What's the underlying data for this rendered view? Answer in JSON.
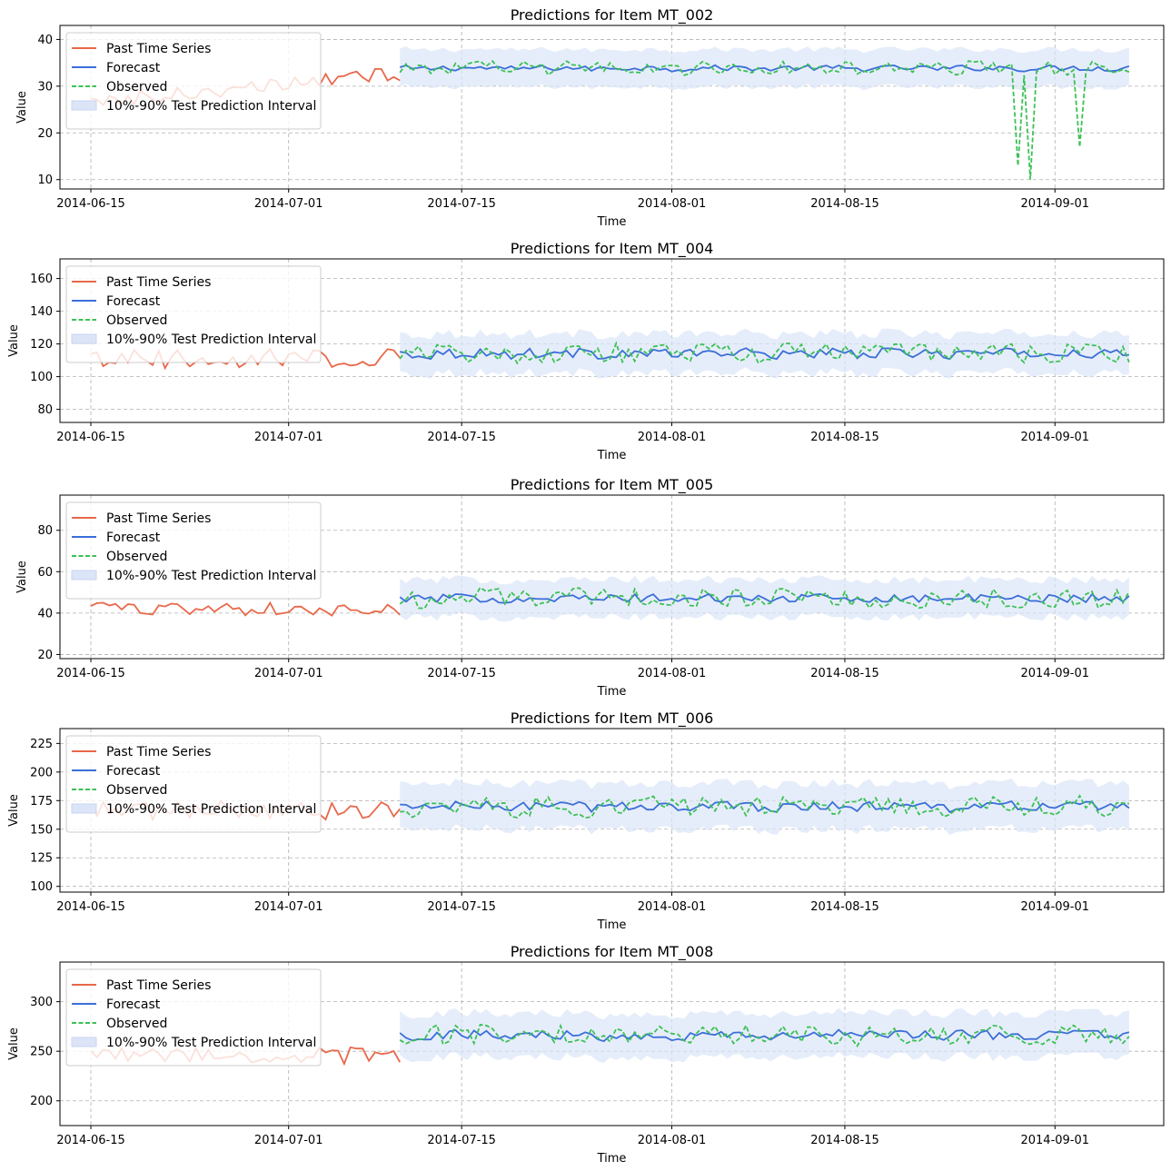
{
  "colors": {
    "past": "#E8684A",
    "forecast": "#3B6FD9",
    "observed": "#3CC156",
    "interval": "#DCE5F8"
  },
  "x_axis": {
    "date_start": "2014-06-15",
    "ticks": [
      "2014-06-15",
      "2014-07-01",
      "2014-07-15",
      "2014-08-01",
      "2014-08-15",
      "2014-09-01"
    ]
  },
  "legend": {
    "placement": "upper-left",
    "entries": {
      "past": "Past Time Series",
      "forecast": "Forecast",
      "observed": "Observed",
      "interval": "10%-90% Test Prediction Interval"
    }
  },
  "chart_data": [
    {
      "type": "line",
      "title": "Predictions for Item MT_002",
      "xlabel": "Time",
      "ylabel": "Value",
      "ylim": [
        8,
        43
      ],
      "yticks": [
        10,
        20,
        30,
        40
      ],
      "series": {
        "past": {
          "x_range": [
            "2014-06-15",
            "2014-07-10"
          ],
          "base": 29,
          "amp": 3,
          "trend": 6,
          "noise": 1.5
        },
        "forecast": {
          "x_range": [
            "2014-07-10",
            "2014-09-07"
          ],
          "base": 33,
          "amp": 4,
          "trend": 0,
          "noise": 0.6
        },
        "observed": {
          "x_range": [
            "2014-07-10",
            "2014-09-07"
          ],
          "base": 33,
          "amp": 4,
          "trend": 0,
          "noise": 1.5,
          "dips": [
            {
              "x": "2014-08-29",
              "y": 13
            },
            {
              "x": "2014-08-30",
              "y": 10
            },
            {
              "x": "2014-09-03",
              "y": 17
            }
          ]
        },
        "interval": {
          "width": 4
        }
      }
    },
    {
      "type": "line",
      "title": "Predictions for Item MT_004",
      "xlabel": "Time",
      "ylabel": "Value",
      "ylim": [
        72,
        172
      ],
      "yticks": [
        80,
        100,
        120,
        140,
        160
      ],
      "series": {
        "past": {
          "x_range": [
            "2014-06-15",
            "2014-07-10"
          ],
          "base": 107,
          "amp": 19,
          "trend": 0,
          "noise": 6
        },
        "forecast": {
          "x_range": [
            "2014-07-10",
            "2014-09-07"
          ],
          "base": 110,
          "amp": 20,
          "trend": 0,
          "noise": 3
        },
        "observed": {
          "x_range": [
            "2014-07-10",
            "2014-09-07"
          ],
          "base": 110,
          "amp": 21,
          "trend": 0,
          "noise": 6,
          "dips": []
        },
        "interval": {
          "width": 12
        }
      }
    },
    {
      "type": "line",
      "title": "Predictions for Item MT_005",
      "xlabel": "Time",
      "ylabel": "Value",
      "ylim": [
        18,
        97
      ],
      "yticks": [
        20,
        40,
        60,
        80
      ],
      "series": {
        "past": {
          "x_range": [
            "2014-06-15",
            "2014-07-10"
          ],
          "base": 40,
          "amp": 9,
          "trend": 0,
          "noise": 3
        },
        "forecast": {
          "x_range": [
            "2014-07-10",
            "2014-09-07"
          ],
          "base": 45,
          "amp": 10,
          "trend": 0,
          "noise": 2
        },
        "observed": {
          "x_range": [
            "2014-07-10",
            "2014-09-07"
          ],
          "base": 45,
          "amp": 11,
          "trend": 0,
          "noise": 5,
          "dips": []
        },
        "interval": {
          "width": 9
        }
      }
    },
    {
      "type": "line",
      "title": "Predictions for Item MT_006",
      "xlabel": "Time",
      "ylabel": "Value",
      "ylim": [
        95,
        238
      ],
      "yticks": [
        100,
        125,
        150,
        175,
        200,
        225
      ],
      "series": {
        "past": {
          "x_range": [
            "2014-06-15",
            "2014-07-10"
          ],
          "base": 160,
          "amp": 33,
          "trend": 0,
          "noise": 8
        },
        "forecast": {
          "x_range": [
            "2014-07-10",
            "2014-09-07"
          ],
          "base": 162,
          "amp": 38,
          "trend": 0,
          "noise": 4
        },
        "observed": {
          "x_range": [
            "2014-07-10",
            "2014-09-07"
          ],
          "base": 162,
          "amp": 38,
          "trend": 0,
          "noise": 9,
          "dips": []
        },
        "interval": {
          "width": 20
        }
      }
    },
    {
      "type": "line",
      "title": "Predictions for Item MT_008",
      "xlabel": "Time",
      "ylabel": "Value",
      "ylim": [
        175,
        340
      ],
      "yticks": [
        200,
        250,
        300
      ],
      "series": {
        "past": {
          "x_range": [
            "2014-06-15",
            "2014-07-10"
          ],
          "base": 240,
          "amp": 30,
          "trend": 0,
          "noise": 8
        },
        "forecast": {
          "x_range": [
            "2014-07-10",
            "2014-09-07"
          ],
          "base": 258,
          "amp": 40,
          "trend": 0,
          "noise": 5
        },
        "observed": {
          "x_range": [
            "2014-07-10",
            "2014-09-07"
          ],
          "base": 258,
          "amp": 40,
          "trend": 0,
          "noise": 10,
          "dips": []
        },
        "interval": {
          "width": 22
        }
      }
    }
  ]
}
